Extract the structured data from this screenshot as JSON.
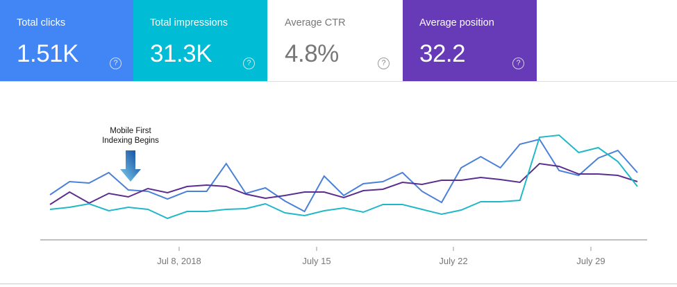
{
  "cards": [
    {
      "label": "Total clicks",
      "value": "1.51K",
      "color": "#4285f4"
    },
    {
      "label": "Total impressions",
      "value": "31.3K",
      "color": "#00bcd4"
    },
    {
      "label": "Average CTR",
      "value": "4.8%",
      "color": "#ffffff"
    },
    {
      "label": "Average position",
      "value": "32.2",
      "color": "#673ab7"
    }
  ],
  "help_icon": "?",
  "chart_data": {
    "type": "line",
    "x_ticks": [
      "Jul 8, 2018",
      "July 15",
      "July 22",
      "July 29"
    ],
    "grid": false,
    "y_axis_labels": false,
    "annotation": {
      "lines": [
        "Mobile First",
        "Indexing Begins"
      ],
      "icon": "arrow-down-icon"
    },
    "series": [
      {
        "color": "#4a80d8",
        "values": [
          66,
          85,
          83,
          98,
          73,
          71,
          60,
          71,
          71,
          111,
          68,
          76,
          57,
          42,
          93,
          65,
          82,
          85,
          98,
          71,
          55,
          105,
          121,
          105,
          139,
          146,
          101,
          94,
          119,
          130,
          98
        ]
      },
      {
        "color": "#5a2d8f",
        "values": [
          52,
          70,
          54,
          68,
          63,
          75,
          69,
          78,
          80,
          78,
          67,
          61,
          65,
          70,
          70,
          62,
          72,
          74,
          84,
          81,
          87,
          87,
          91,
          88,
          84,
          111,
          107,
          96,
          96,
          94,
          85
        ]
      },
      {
        "color": "#20b8c8",
        "values": [
          45,
          48,
          53,
          43,
          48,
          45,
          32,
          42,
          42,
          45,
          46,
          53,
          40,
          36,
          43,
          47,
          41,
          52,
          52,
          45,
          38,
          44,
          56,
          56,
          58,
          149,
          152,
          127,
          134,
          114,
          78
        ]
      }
    ]
  }
}
